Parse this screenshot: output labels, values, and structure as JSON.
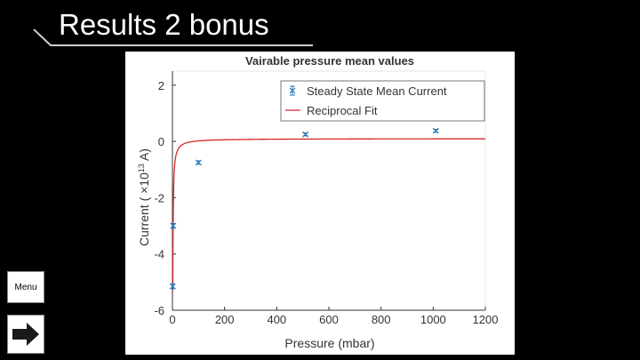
{
  "slide": {
    "title": "Results 2 bonus"
  },
  "nav": {
    "menu_label": "Menu",
    "next_icon": "right-arrow-icon"
  },
  "colors": {
    "background": "#000000",
    "fit_line": "#d62728",
    "data_markers": "#1f77b4"
  },
  "chart_data": {
    "type": "scatter",
    "title": "Vairable pressure mean values",
    "xlabel": "Pressure (mbar)",
    "ylabel_prefix": "Current ( ×10",
    "ylabel_exponent": "13",
    "ylabel_suffix": " A)",
    "xlim": [
      0,
      1200
    ],
    "ylim": [
      -6,
      2.5
    ],
    "xticks": [
      "0",
      "200",
      "400",
      "600",
      "800",
      "1000",
      "1200"
    ],
    "yticks": [
      "-6",
      "-4",
      "-2",
      "0",
      "2"
    ],
    "grid": false,
    "legend_position": "top-right",
    "series": [
      {
        "name": "Steady State Mean Current",
        "kind": "errorbar",
        "marker": "x",
        "x": [
          1,
          3,
          100,
          510,
          1010
        ],
        "y": [
          -5.15,
          -3.0,
          -0.75,
          0.25,
          0.38
        ],
        "err": [
          0.08,
          0.08,
          0.06,
          0.05,
          0.05
        ]
      },
      {
        "name": "Reciprocal Fit",
        "kind": "line",
        "model": "a + b / x",
        "a": 0.1,
        "b": -8.1,
        "x_start": 1.5,
        "x_end": 1200
      }
    ]
  }
}
